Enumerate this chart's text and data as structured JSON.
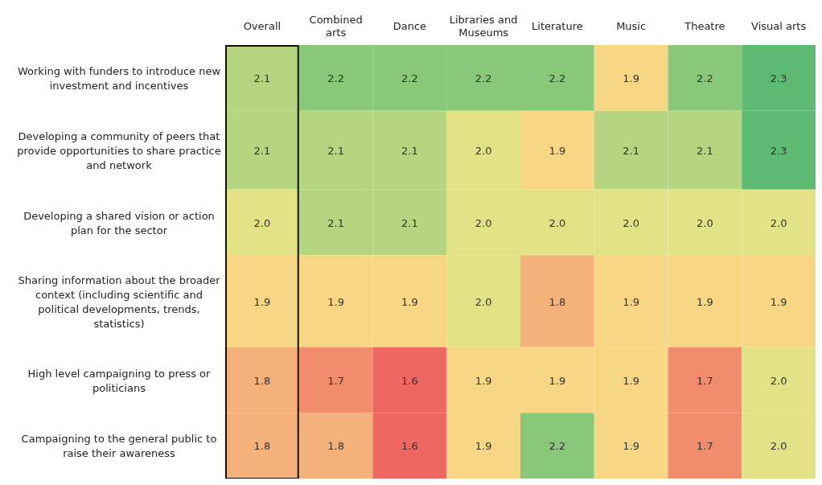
{
  "chart_data": {
    "type": "heatmap",
    "categories": [
      "Overall",
      "Combined arts",
      "Dance",
      "Libraries and Museums",
      "Literature",
      "Music",
      "Theatre",
      "Visual arts"
    ],
    "y_categories": [
      "Working with funders to introduce new investment and incentives",
      "Developing a community of peers that provide opportunities to share practice and network",
      "Developing a shared vision or action plan for the sector",
      "Sharing information about the broader context (including scientific and political developments, trends, statistics)",
      "High level campaigning to press or politicians",
      "Campaigning to the general public to raise their awareness"
    ],
    "cells": [
      [
        2.1,
        2.2,
        2.2,
        2.2,
        2.2,
        1.9,
        2.2,
        2.3
      ],
      [
        2.1,
        2.1,
        2.1,
        2.0,
        1.9,
        2.1,
        2.1,
        2.3
      ],
      [
        2.0,
        2.1,
        2.1,
        2.0,
        2.0,
        2.0,
        2.0,
        2.0
      ],
      [
        1.9,
        1.9,
        1.9,
        2.0,
        1.8,
        1.9,
        1.9,
        1.9
      ],
      [
        1.8,
        1.7,
        1.6,
        1.9,
        1.9,
        1.9,
        1.7,
        2.0
      ],
      [
        1.8,
        1.8,
        1.6,
        1.9,
        2.2,
        1.9,
        1.7,
        2.0
      ]
    ],
    "cell_labels": [
      [
        "2.1",
        "2.2",
        "2.2",
        "2.2",
        "2.2",
        "1.9",
        "2.2",
        "2.3"
      ],
      [
        "2.1",
        "2.1",
        "2.1",
        "2.0",
        "1.9",
        "2.1",
        "2.1",
        "2.3"
      ],
      [
        "2.0",
        "2.1",
        "2.1",
        "2.0",
        "2.0",
        "2.0",
        "2.0",
        "2.0"
      ],
      [
        "1.9",
        "1.9",
        "1.9",
        "2.0",
        "1.8",
        "1.9",
        "1.9",
        "1.9"
      ],
      [
        "1.8",
        "1.7",
        "1.6",
        "1.9",
        "1.9",
        "1.9",
        "1.7",
        "2.0"
      ],
      [
        "1.8",
        "1.8",
        "1.6",
        "1.9",
        "2.2",
        "1.9",
        "1.7",
        "2.0"
      ]
    ]
  }
}
